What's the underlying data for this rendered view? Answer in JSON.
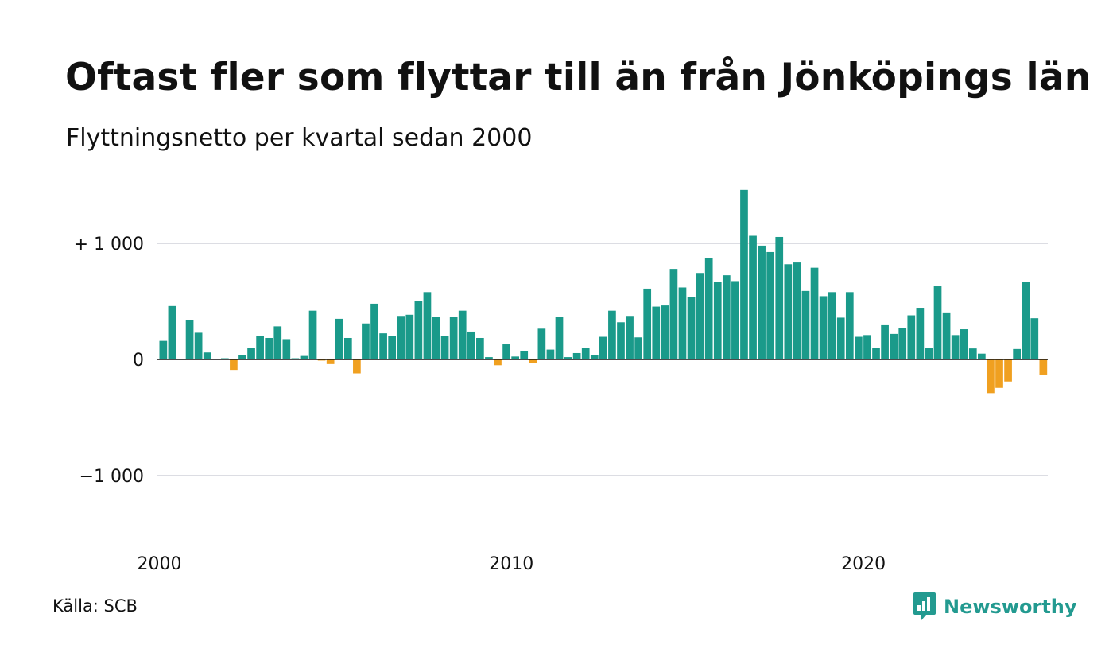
{
  "title": "Oftast fler som flyttar till än från Jönköpings län",
  "subtitle": "Flyttningsnetto per kvartal sedan 2000",
  "source": "Källa: SCB",
  "brand": {
    "name": "Newsworthy",
    "icon": "newsworthy-logo-icon"
  },
  "colors": {
    "positive": "#1a9a8a",
    "negative": "#f0a020",
    "grid": "#dcdde3",
    "zero_line": "#111111"
  },
  "chart_data": {
    "type": "bar",
    "x_start": "2000 Q1",
    "x_ticks": [
      {
        "label": "2000",
        "index": 0
      },
      {
        "label": "2010",
        "index": 40
      },
      {
        "label": "2020",
        "index": 80
      }
    ],
    "y_ticks": [
      {
        "label": "+ 1 000",
        "value": 1000
      },
      {
        "label": "0",
        "value": 0
      },
      {
        "label": "−1 000",
        "value": -1000
      }
    ],
    "ylim": [
      -1550,
      1550
    ],
    "grid": true,
    "values": [
      160,
      460,
      0,
      340,
      230,
      60,
      0,
      10,
      -90,
      40,
      100,
      200,
      185,
      285,
      175,
      10,
      30,
      420,
      -10,
      -40,
      350,
      185,
      -120,
      310,
      480,
      225,
      205,
      375,
      385,
      500,
      580,
      365,
      205,
      365,
      420,
      240,
      185,
      20,
      -50,
      130,
      25,
      75,
      -30,
      265,
      85,
      365,
      20,
      55,
      100,
      40,
      195,
      420,
      320,
      375,
      190,
      610,
      455,
      465,
      780,
      620,
      535,
      745,
      870,
      665,
      725,
      675,
      1460,
      1065,
      980,
      925,
      1055,
      820,
      835,
      590,
      790,
      545,
      580,
      360,
      580,
      195,
      210,
      100,
      295,
      220,
      270,
      380,
      445,
      100,
      630,
      405,
      210,
      260,
      95,
      50,
      -290,
      -245,
      -190,
      90,
      665,
      355,
      -130
    ]
  }
}
